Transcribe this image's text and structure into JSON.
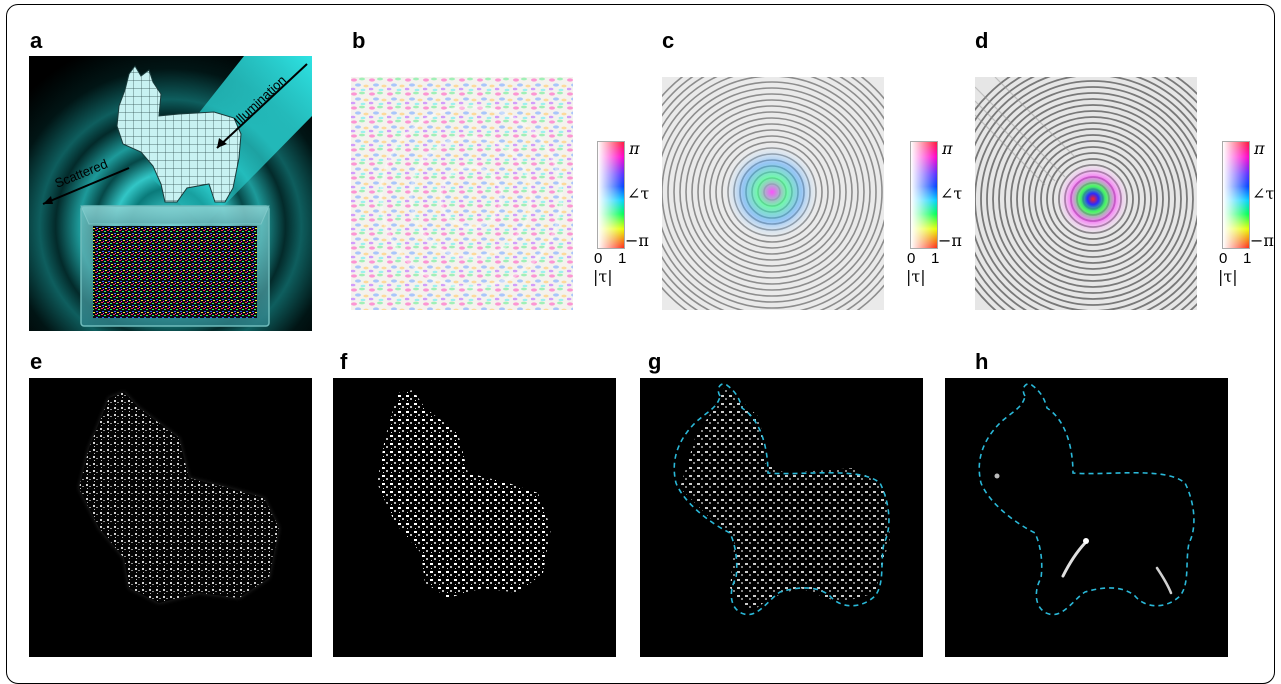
{
  "panels": [
    {
      "id": "a",
      "label": "a"
    },
    {
      "id": "b",
      "label": "b"
    },
    {
      "id": "c",
      "label": "c"
    },
    {
      "id": "d",
      "label": "d"
    },
    {
      "id": "e",
      "label": "e"
    },
    {
      "id": "f",
      "label": "f"
    },
    {
      "id": "g",
      "label": "g"
    },
    {
      "id": "h",
      "label": "h"
    }
  ],
  "illustration": {
    "illumination_label": "Illumination",
    "scattered_label": "Scattered"
  },
  "colorbar": {
    "top_label": "π",
    "middle_label": "∠τ",
    "bottom_label": "−π",
    "tick_min": "0",
    "tick_max": "1",
    "abs_label": "|τ|"
  },
  "colors": {
    "illumination_cyan": "#22d6d6",
    "outline_cyan": "#2ab8d8",
    "background_dark": "#000000"
  }
}
